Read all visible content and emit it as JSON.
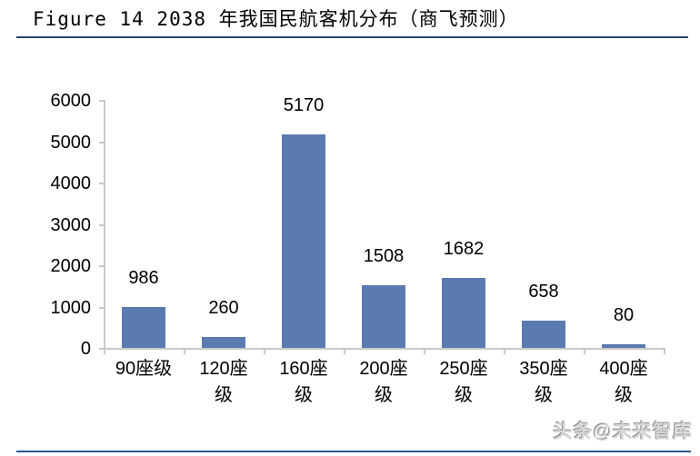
{
  "header": {
    "title": "Figure 14 2038 年我国民航客机分布（商飞预测）"
  },
  "footer": {
    "watermark": "头条@未来智库"
  },
  "colors": {
    "bar": "#5B7AB0",
    "axis": "#C9C9C9",
    "title_rule": "#24466E",
    "bottom_rule": "#2E5597"
  },
  "chart_data": {
    "type": "bar",
    "title": "2038 年我国民航客机分布（商飞预测）",
    "source_note": "商飞预测",
    "categories": [
      "90座级",
      "120座级",
      "160座级",
      "200座级",
      "250座级",
      "350座级",
      "400座级"
    ],
    "category_label_lines": [
      [
        "90座级"
      ],
      [
        "120座",
        "级"
      ],
      [
        "160座",
        "级"
      ],
      [
        "200座",
        "级"
      ],
      [
        "250座",
        "级"
      ],
      [
        "350座",
        "级"
      ],
      [
        "400座",
        "级"
      ]
    ],
    "values": [
      986,
      260,
      5170,
      1508,
      1682,
      658,
      80
    ],
    "xlabel": "",
    "ylabel": "",
    "ylim": [
      0,
      6000
    ],
    "yticks": [
      0,
      1000,
      2000,
      3000,
      4000,
      5000,
      6000
    ],
    "grid": false,
    "legend": "none",
    "value_labels_shown": true,
    "bar_color": "#5B7AB0"
  }
}
